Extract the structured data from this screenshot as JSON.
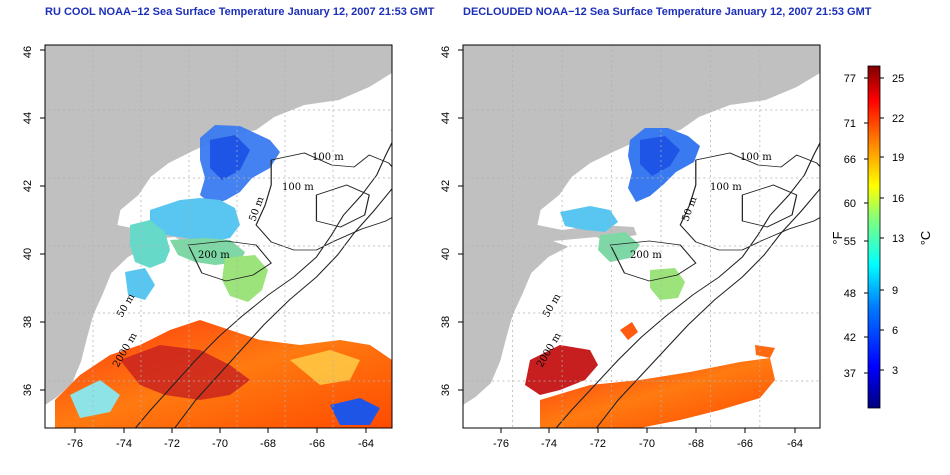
{
  "panels": [
    {
      "title": "RU COOL NOAA−12 Sea Surface Temperature January 12, 2007 21:53 GMT"
    },
    {
      "title": "DECLOUDED NOAA−12 Sea Surface Temperature January 12, 2007 21:53 GMT"
    }
  ],
  "map": {
    "lat_ticks": [
      "46",
      "44",
      "42",
      "40",
      "38",
      "36"
    ],
    "lon_ticks": [
      "-76",
      "-74",
      "-72",
      "-70",
      "-68",
      "-66",
      "-64"
    ],
    "contour_labels": [
      "100 m",
      "100 m",
      "50 m",
      "200 m",
      "50 m",
      "2000 m"
    ],
    "land_color": "#c0c0c0",
    "grid": "dotted"
  },
  "colorbar": {
    "fahrenheit_ticks": [
      "77",
      "71",
      "66",
      "60",
      "55",
      "48",
      "42",
      "37"
    ],
    "celsius_ticks": [
      "25",
      "22",
      "19",
      "16",
      "13",
      "9",
      "6",
      "3"
    ],
    "fahrenheit_label": "°F",
    "celsius_label": "°C",
    "colors": [
      "#00007f",
      "#0000ff",
      "#007fff",
      "#00ffff",
      "#7fff7f",
      "#ffff00",
      "#ff7f00",
      "#ff0000",
      "#7f0000"
    ]
  }
}
